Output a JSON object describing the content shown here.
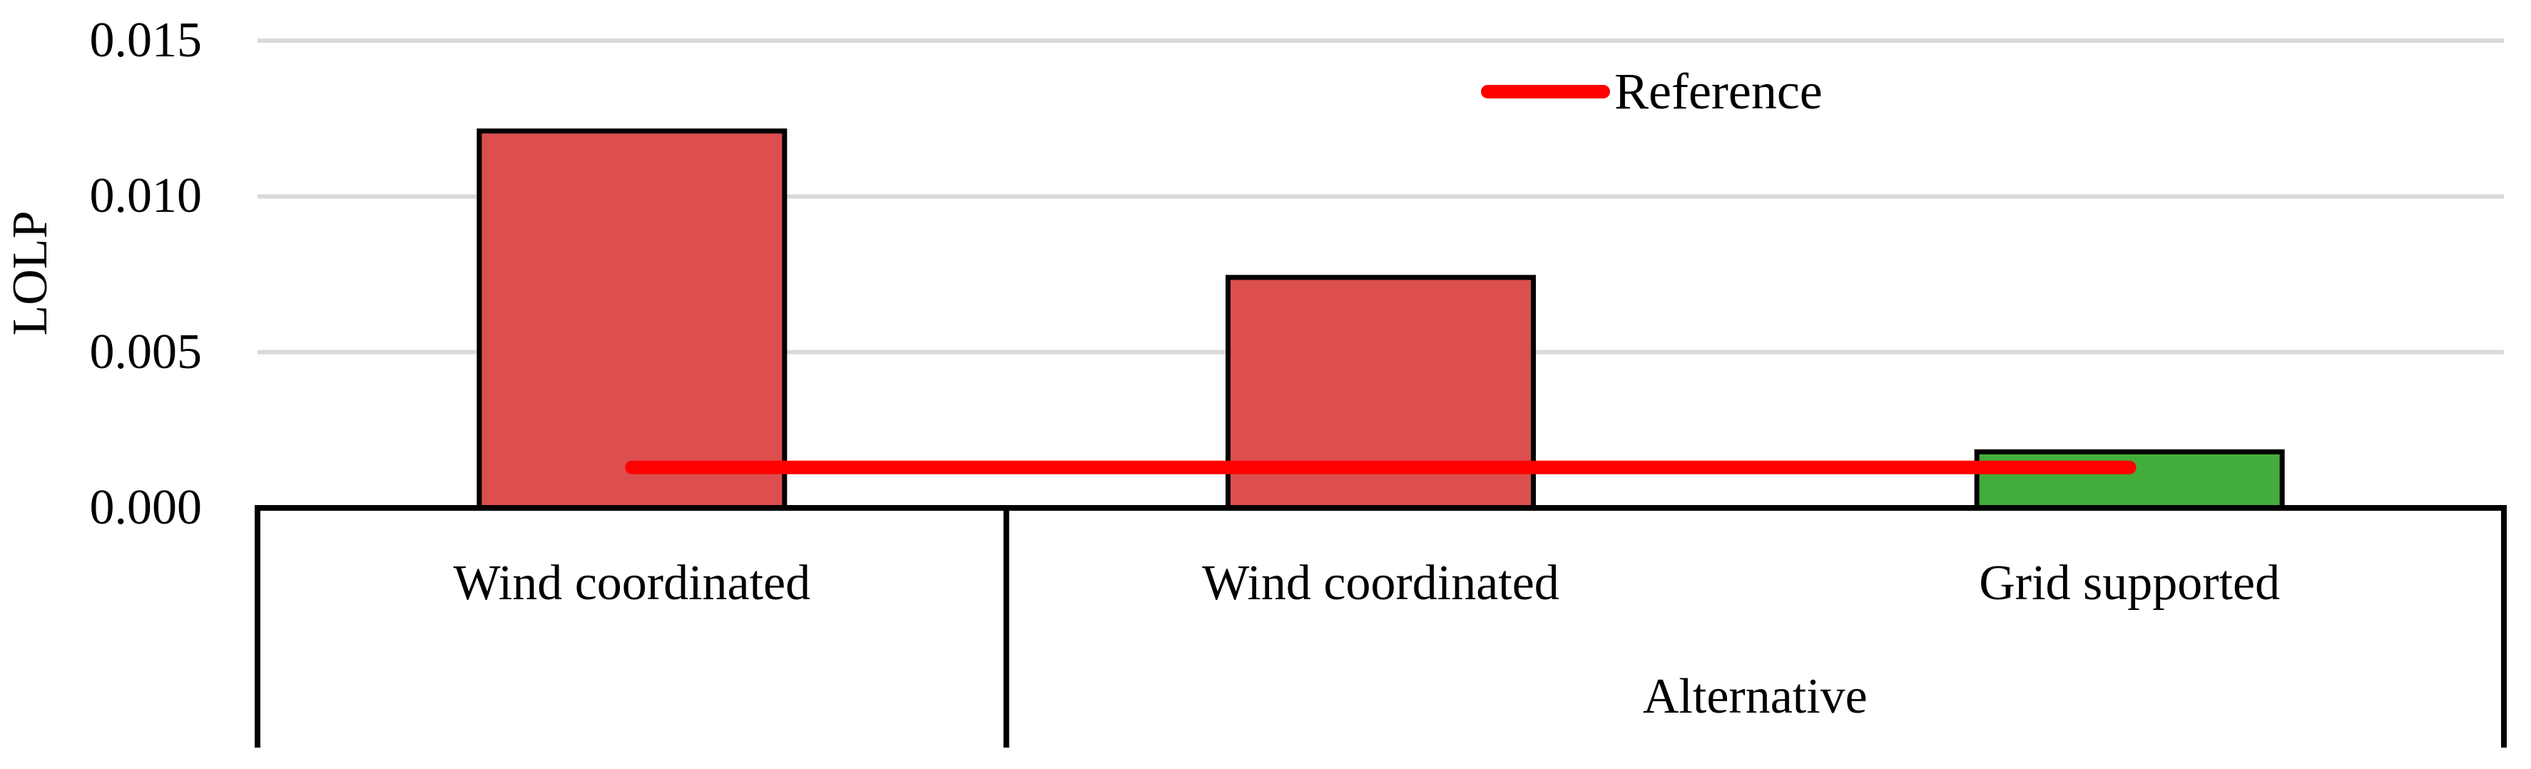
{
  "chart_data": {
    "type": "bar",
    "title": "",
    "ylabel": "LOLP",
    "xlabel": "",
    "categories": [
      "Wind coordinated",
      "Wind coordinated",
      "Grid supported"
    ],
    "category_groups": [
      {
        "label": "",
        "start": 0,
        "end": 0
      },
      {
        "label": "Alternative",
        "start": 1,
        "end": 2
      }
    ],
    "values": [
      0.0121,
      0.0074,
      0.0018
    ],
    "bar_colors": [
      "#DC4F4E",
      "#DC4F4E",
      "#43AD3B"
    ],
    "bar_border_color": "#000000",
    "reference_line": {
      "label": "Reference",
      "value": 0.0013,
      "color": "#FF0000",
      "from_category": 0,
      "to_category": 2
    },
    "yticks": {
      "values": [
        0,
        0.005,
        0.01,
        0.015
      ],
      "labels": [
        "0.000",
        "0.005",
        "0.010",
        "0.015"
      ]
    },
    "ylim": [
      0,
      0.015
    ],
    "grid": {
      "show": true,
      "color": "#D9D9D9"
    },
    "axis_color": "#000000",
    "legend": {
      "position": "top-inside",
      "entries": [
        {
          "label": "Reference",
          "marker": "line",
          "color": "#FF0000"
        }
      ]
    }
  }
}
